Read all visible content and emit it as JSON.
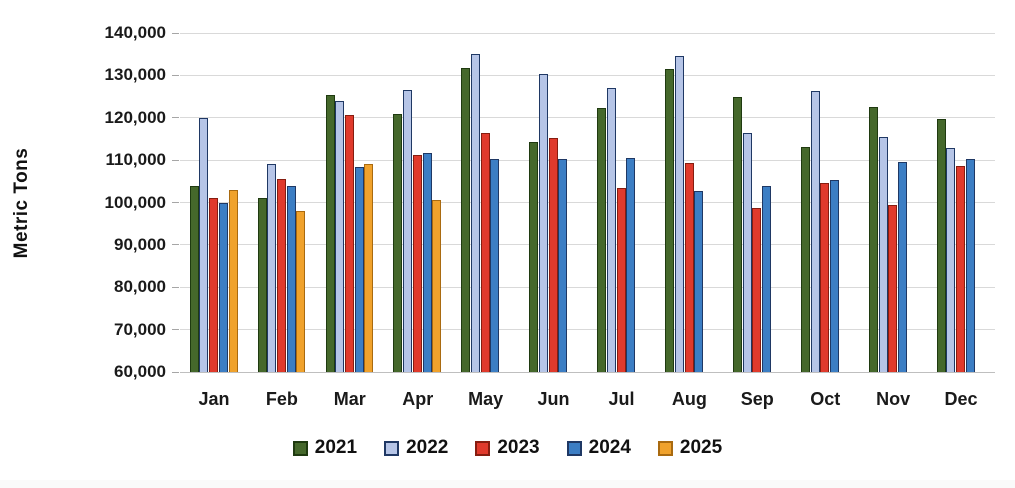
{
  "chart_data": {
    "type": "bar",
    "title": "",
    "ylabel": "Metric Tons",
    "xlabel": "",
    "categories": [
      "Jan",
      "Feb",
      "Mar",
      "Apr",
      "May",
      "Jun",
      "Jul",
      "Aug",
      "Sep",
      "Oct",
      "Nov",
      "Dec"
    ],
    "series": [
      {
        "name": "2021",
        "color": "#45682b",
        "border": "#1f3a10",
        "values": [
          104000,
          101000,
          125400,
          121000,
          131800,
          114300,
          122300,
          131500,
          124800,
          113000,
          122600,
          119800
        ]
      },
      {
        "name": "2022",
        "color": "#b6c5e7",
        "border": "#1f3864",
        "values": [
          120000,
          109000,
          124000,
          126500,
          135000,
          130300,
          127000,
          134500,
          116400,
          126400,
          115500,
          112800
        ]
      },
      {
        "name": "2023",
        "color": "#e03a2c",
        "border": "#861d10",
        "values": [
          101000,
          105500,
          120700,
          111300,
          116400,
          115300,
          103400,
          109300,
          98800,
          104500,
          99500,
          108700
        ]
      },
      {
        "name": "2024",
        "color": "#3c7ec4",
        "border": "#1f3864",
        "values": [
          100000,
          104000,
          108400,
          111700,
          110300,
          110300,
          110500,
          102800,
          103800,
          105300,
          109500,
          110300
        ]
      },
      {
        "name": "2025",
        "color": "#f0a22c",
        "border": "#a96a10",
        "values": [
          103000,
          98000,
          109200,
          100500,
          null,
          null,
          null,
          null,
          null,
          null,
          null,
          null
        ]
      }
    ],
    "ylim": [
      60000,
      140000
    ],
    "ytick_step": 10000,
    "ytick_labels": [
      "60,000",
      "70,000",
      "80,000",
      "90,000",
      "100,000",
      "110,000",
      "120,000",
      "130,000",
      "140,000"
    ],
    "grid": true,
    "legend_position": "bottom"
  }
}
